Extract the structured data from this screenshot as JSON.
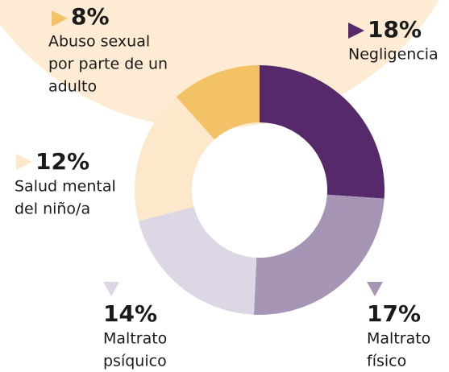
{
  "chart_data": {
    "type": "donut",
    "categories": [
      [
        "Negligencia"
      ],
      [
        "Maltrato",
        "físico"
      ],
      [
        "Maltrato",
        "psíquico"
      ],
      [
        "Salud mental",
        "del niño/a"
      ],
      [
        "Abuso sexual",
        "por parte de un",
        "adulto"
      ]
    ],
    "values": [
      18,
      17,
      14,
      12,
      8
    ],
    "value_labels": [
      "18%",
      "17%",
      "14%",
      "12%",
      "8%"
    ],
    "colors": [
      "#55296a",
      "#a795b5",
      "#ddd6e5",
      "#fde8cc",
      "#f4c266"
    ]
  }
}
